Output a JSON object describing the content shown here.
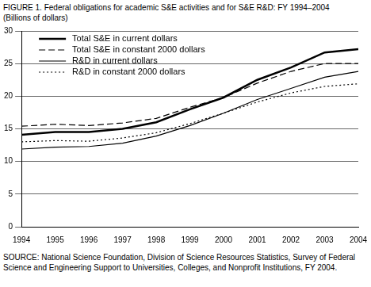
{
  "chart_data": {
    "type": "line",
    "title": "FIGURE 1. Federal obligations for academic S&E activities and for S&E R&D: FY 1994–2004",
    "subtitle": "(Billions of dollars)",
    "source": "SOURCE: National Science Foundation, Division of Science Resources Statistics, Survey of Federal Science and Engineering Support to Universities, Colleges, and Nonprofit Institutions, FY 2004.",
    "categories": [
      "1994",
      "1995",
      "1996",
      "1997",
      "1998",
      "1999",
      "2000",
      "2001",
      "2002",
      "2003",
      "2004"
    ],
    "series": [
      {
        "name": "Total S&E in current dollars",
        "color": "#000000",
        "line_style": "solid",
        "values": [
          14.1,
          14.5,
          14.5,
          15.0,
          16.0,
          18.0,
          19.8,
          22.5,
          24.4,
          26.7,
          27.2
        ]
      },
      {
        "name": "Total S&E in constant 2000 dollars",
        "color": "#000000",
        "line_style": "dashed",
        "values": [
          15.4,
          15.7,
          15.5,
          15.9,
          16.6,
          18.3,
          19.8,
          22.0,
          23.8,
          25.0,
          25.0
        ]
      },
      {
        "name": "R&D in current dollars",
        "color": "#000000",
        "line_style": "solid",
        "values": [
          11.9,
          12.2,
          12.3,
          12.8,
          13.9,
          15.5,
          17.4,
          19.5,
          21.2,
          22.9,
          23.8
        ]
      },
      {
        "name": "R&D in constant 2000 dollars",
        "color": "#000000",
        "line_style": "dotted",
        "values": [
          13.0,
          13.2,
          13.1,
          13.6,
          14.4,
          15.8,
          17.4,
          19.1,
          20.5,
          21.5,
          21.9
        ]
      }
    ],
    "ylim": [
      0,
      30
    ],
    "yticks": [
      0,
      5,
      10,
      15,
      20,
      25,
      30
    ],
    "grid": true,
    "legend": "upper left"
  }
}
